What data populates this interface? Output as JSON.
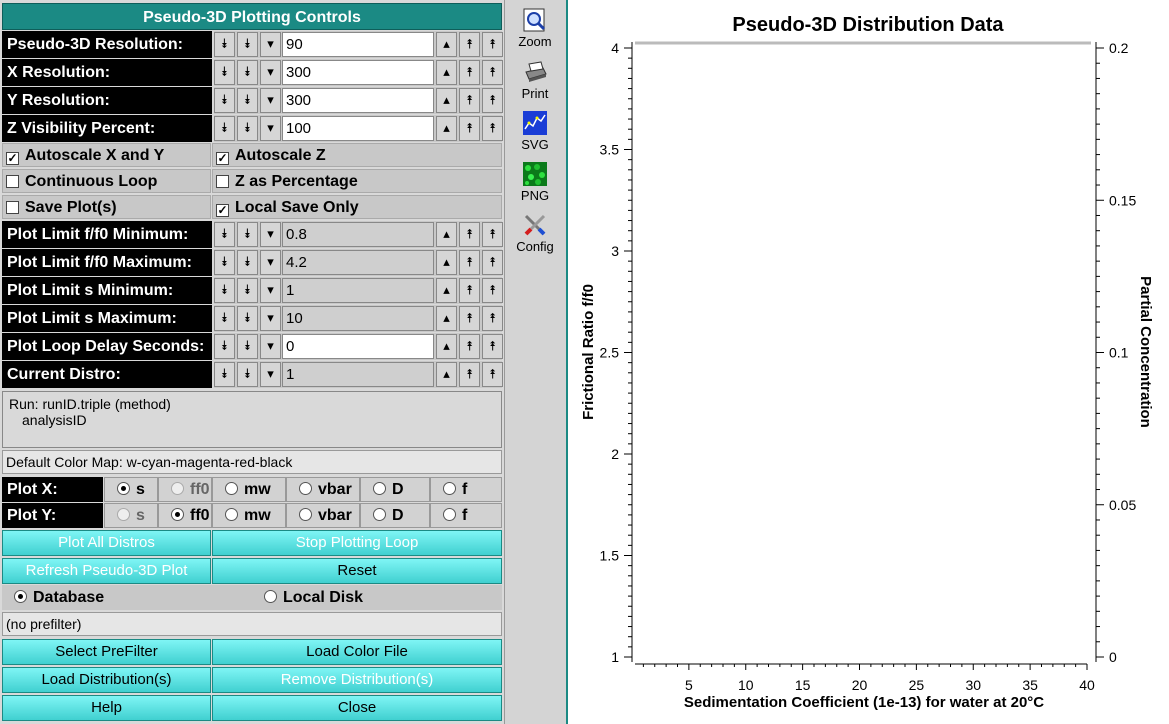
{
  "panel": {
    "title": "Pseudo-3D Plotting Controls",
    "counters": [
      {
        "label": "Pseudo-3D Resolution:",
        "value": "90",
        "editable": true
      },
      {
        "label": "X Resolution:",
        "value": "300",
        "editable": true
      },
      {
        "label": "Y Resolution:",
        "value": "300",
        "editable": true
      },
      {
        "label": "Z Visibility Percent:",
        "value": "100",
        "editable": true
      }
    ],
    "checkboxes": [
      {
        "label": "Autoscale X and Y",
        "checked": true
      },
      {
        "label": "Autoscale Z",
        "checked": true
      },
      {
        "label": "Continuous Loop",
        "checked": false
      },
      {
        "label": "Z as Percentage",
        "checked": false
      },
      {
        "label": "Save Plot(s)",
        "checked": false
      },
      {
        "label": "Local Save Only",
        "checked": true
      }
    ],
    "limits": [
      {
        "label": "Plot Limit f/f0 Minimum:",
        "value": "0.8",
        "editable": false
      },
      {
        "label": "Plot Limit f/f0 Maximum:",
        "value": "4.2",
        "editable": false
      },
      {
        "label": "Plot Limit s Minimum:",
        "value": "1",
        "editable": false
      },
      {
        "label": "Plot Limit s Maximum:",
        "value": "10",
        "editable": false
      },
      {
        "label": "Plot Loop Delay Seconds:",
        "value": "0",
        "editable": true
      },
      {
        "label": "Current Distro:",
        "value": "1",
        "editable": false
      }
    ],
    "run_info": {
      "line1": "Run:  runID.triple (method)",
      "line2": "analysisID"
    },
    "color_map": "Default Color Map: w-cyan-magenta-red-black",
    "plot_x": {
      "label": "Plot X:",
      "options": [
        "s",
        "ff0",
        "mw",
        "vbar",
        "D",
        "f"
      ],
      "selected": "s",
      "disabled": "ff0"
    },
    "plot_y": {
      "label": "Plot Y:",
      "options": [
        "s",
        "ff0",
        "mw",
        "vbar",
        "D",
        "f"
      ],
      "selected": "ff0",
      "disabled": "s"
    },
    "buttons": {
      "plot_all": "Plot All Distros",
      "stop_loop": "Stop Plotting Loop",
      "refresh": "Refresh Pseudo-3D Plot",
      "reset": "Reset",
      "select_prefilter": "Select PreFilter",
      "load_color": "Load Color File",
      "load_distro": "Load Distribution(s)",
      "remove_distro": "Remove Distribution(s)",
      "help": "Help",
      "close": "Close"
    },
    "source": {
      "database": "Database",
      "local_disk": "Local Disk",
      "selected": "database"
    },
    "prefilter": "(no prefilter)"
  },
  "toolbar": {
    "zoom": "Zoom",
    "print": "Print",
    "svg": "SVG",
    "png": "PNG",
    "config": "Config"
  },
  "chart_data": {
    "type": "scatter",
    "title": "Pseudo-3D Distribution Data",
    "xlabel": "Sedimentation Coefficient (1e-13) for water at 20°C",
    "ylabel": "Frictional Ratio f/f0",
    "y2label": "Partial Concentration",
    "xlim": [
      0,
      40
    ],
    "ylim": [
      1,
      4
    ],
    "y2lim": [
      0,
      0.2
    ],
    "xticks": [
      "5",
      "10",
      "15",
      "20",
      "25",
      "30",
      "35",
      "40"
    ],
    "yticks": [
      "1",
      "1.5",
      "2",
      "2.5",
      "3",
      "3.5",
      "4"
    ],
    "y2ticks": [
      "0",
      "0.05",
      "0.1",
      "0.15",
      "0.2"
    ],
    "series": []
  }
}
